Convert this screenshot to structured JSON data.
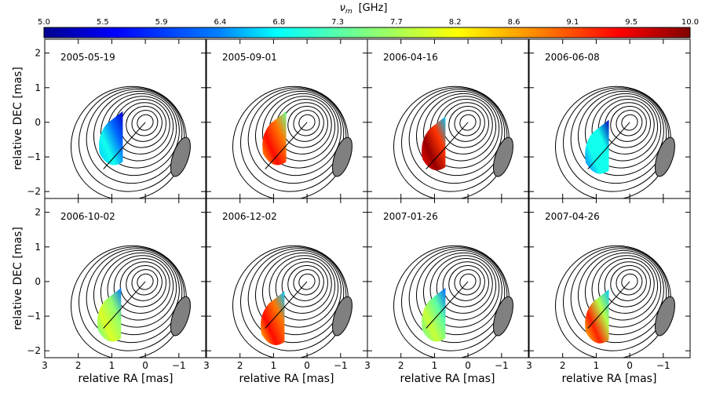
{
  "chart_data": {
    "type": "contour-image-grid",
    "colorbar": {
      "label": "ν_m  [GHz]",
      "symbol": "ν",
      "subscript": "m",
      "unit": "[GHz]",
      "ticks": [
        "5.0",
        "5.5",
        "5.9",
        "6.4",
        "6.8",
        "7.3",
        "7.7",
        "8.2",
        "8.6",
        "9.1",
        "9.5",
        "10.0"
      ],
      "min": 5.0,
      "max": 10.0,
      "colormap": [
        "#00008f",
        "#0000ff",
        "#0080ff",
        "#00ffff",
        "#80ff80",
        "#ffff00",
        "#ff8000",
        "#ff0000",
        "#800000"
      ]
    },
    "xlabel": "relative RA [mas]",
    "ylabel": "relative DEC [mas]",
    "xlim": [
      3,
      -1.8
    ],
    "ylim": [
      -2.2,
      2.4
    ],
    "xticks": [
      "3",
      "2",
      "1",
      "0",
      "−1"
    ],
    "yticks": [
      "2",
      "1",
      "0",
      "−1",
      "−2"
    ],
    "panels": [
      {
        "date": "2005-05-19",
        "patch_freq": [
          6.6,
          6.9,
          6.2,
          5.3
        ],
        "patch_center": [
          1.0,
          -0.45
        ]
      },
      {
        "date": "2005-09-01",
        "patch_freq": [
          8.6,
          9.4,
          8.9,
          7.4
        ],
        "patch_center": [
          0.95,
          -0.45
        ]
      },
      {
        "date": "2006-04-16",
        "patch_freq": [
          9.4,
          9.9,
          9.2,
          6.6
        ],
        "patch_center": [
          1.0,
          -0.6
        ]
      },
      {
        "date": "2006-06-08",
        "patch_freq": [
          6.2,
          6.9,
          6.9,
          5.2
        ],
        "patch_center": [
          0.95,
          -0.7
        ]
      },
      {
        "date": "2006-10-02",
        "patch_freq": [
          7.3,
          8.0,
          7.6,
          6.3
        ],
        "patch_center": [
          1.05,
          -0.95
        ]
      },
      {
        "date": "2006-12-02",
        "patch_freq": [
          8.4,
          9.4,
          8.9,
          6.6
        ],
        "patch_center": [
          1.0,
          -1.05
        ]
      },
      {
        "date": "2007-01-26",
        "patch_freq": [
          7.3,
          7.9,
          7.3,
          6.2
        ],
        "patch_center": [
          1.0,
          -0.95
        ]
      },
      {
        "date": "2007-04-26",
        "patch_freq": [
          8.4,
          9.3,
          7.8,
          6.6
        ],
        "patch_center": [
          0.95,
          -1.0
        ]
      }
    ]
  }
}
